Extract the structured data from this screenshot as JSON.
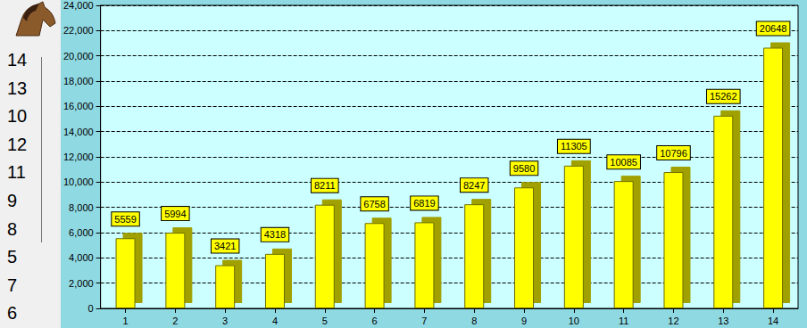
{
  "chart_data": {
    "type": "bar",
    "categories": [
      "1",
      "2",
      "3",
      "4",
      "5",
      "6",
      "7",
      "8",
      "9",
      "10",
      "11",
      "12",
      "13",
      "14"
    ],
    "values": [
      5559,
      5994,
      3421,
      4318,
      8211,
      6758,
      6819,
      8247,
      9580,
      11305,
      10085,
      10796,
      15262,
      20648
    ],
    "color": "#ffff00",
    "ylim": [
      0,
      24000
    ],
    "yticks": [
      0,
      2000,
      4000,
      6000,
      8000,
      10000,
      12000,
      14000,
      16000,
      18000,
      20000,
      22000,
      24000
    ],
    "grid": true,
    "data_labels": true,
    "annotations": [
      "14",
      "13",
      "10",
      "12",
      "11",
      "9",
      "8",
      "5",
      "7",
      "6"
    ]
  }
}
